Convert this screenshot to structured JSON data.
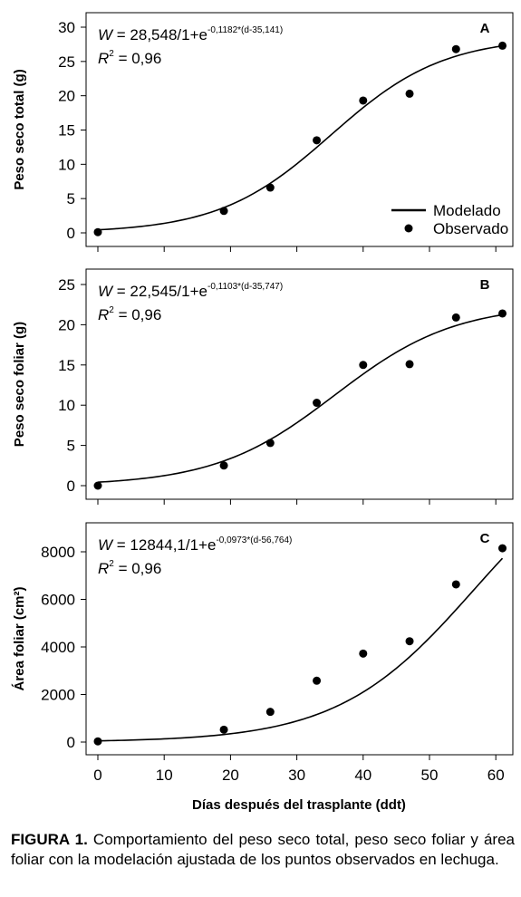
{
  "figure": {
    "caption_label": "FIGURA 1.",
    "caption_text": "Comportamiento del peso seco total, peso seco foliar y área foliar con la modelación ajustada de los puntos observados en lechuga.",
    "xlabel": "Días después del trasplante (ddt)",
    "x_ticks": [
      "0",
      "10",
      "20",
      "30",
      "40",
      "50",
      "60"
    ],
    "legend": {
      "model": "Modelado",
      "observed": "Observado",
      "position": "bottom-right of panel A"
    }
  },
  "chart_data": [
    {
      "type": "scatter",
      "panel": "A",
      "ylabel": "Peso seco total (g)",
      "equation": {
        "lhs": "W",
        "eq": " = 28,548/1+e",
        "exp": "-0,1182*(d-35,141)"
      },
      "r2": {
        "label": "R",
        "sup": "2",
        "value": " = 0,96"
      },
      "xlim": [
        0,
        61
      ],
      "ylim": [
        0,
        30
      ],
      "y_ticks": [
        "0",
        "5",
        "10",
        "15",
        "20",
        "25",
        "30"
      ],
      "model": {
        "K": 28.548,
        "r": 0.1182,
        "d0": 35.141
      },
      "series": [
        {
          "name": "Observado",
          "x": [
            0,
            19,
            26,
            33,
            40,
            47,
            54,
            61
          ],
          "y": [
            0.1,
            3.2,
            6.6,
            13.5,
            19.3,
            20.3,
            26.8,
            27.3
          ]
        }
      ]
    },
    {
      "type": "scatter",
      "panel": "B",
      "ylabel": "Peso seco foliar (g)",
      "equation": {
        "lhs": "W",
        "eq": " = 22,545/1+e",
        "exp": "-0,1103*(d-35,747)"
      },
      "r2": {
        "label": "R",
        "sup": "2",
        "value": " = 0,96"
      },
      "xlim": [
        0,
        61
      ],
      "ylim": [
        0,
        25
      ],
      "y_ticks": [
        "0",
        "5",
        "10",
        "15",
        "20",
        "25"
      ],
      "model": {
        "K": 22.545,
        "r": 0.1103,
        "d0": 35.747
      },
      "series": [
        {
          "name": "Observado",
          "x": [
            0,
            19,
            26,
            33,
            40,
            47,
            54,
            61
          ],
          "y": [
            0.0,
            2.5,
            5.3,
            10.3,
            15.0,
            15.1,
            20.9,
            21.4
          ]
        }
      ]
    },
    {
      "type": "scatter",
      "panel": "C",
      "ylabel": "Área foliar (cm²)",
      "equation": {
        "lhs": "W",
        "eq": " = 12844,1/1+e",
        "exp": "-0,0973*(d-56,764)"
      },
      "r2": {
        "label": "R",
        "sup": "2",
        "value": " = 0,96"
      },
      "xlim": [
        0,
        61
      ],
      "ylim": [
        0,
        8000
      ],
      "y_ticks": [
        "0",
        "2000",
        "4000",
        "6000",
        "8000"
      ],
      "model": {
        "K": 12844.1,
        "r": 0.0973,
        "d0": 56.764
      },
      "series": [
        {
          "name": "Observado",
          "x": [
            0,
            19,
            26,
            33,
            40,
            47,
            54,
            61
          ],
          "y": [
            30,
            520,
            1270,
            2580,
            3720,
            4240,
            6630,
            8150
          ]
        }
      ]
    }
  ]
}
